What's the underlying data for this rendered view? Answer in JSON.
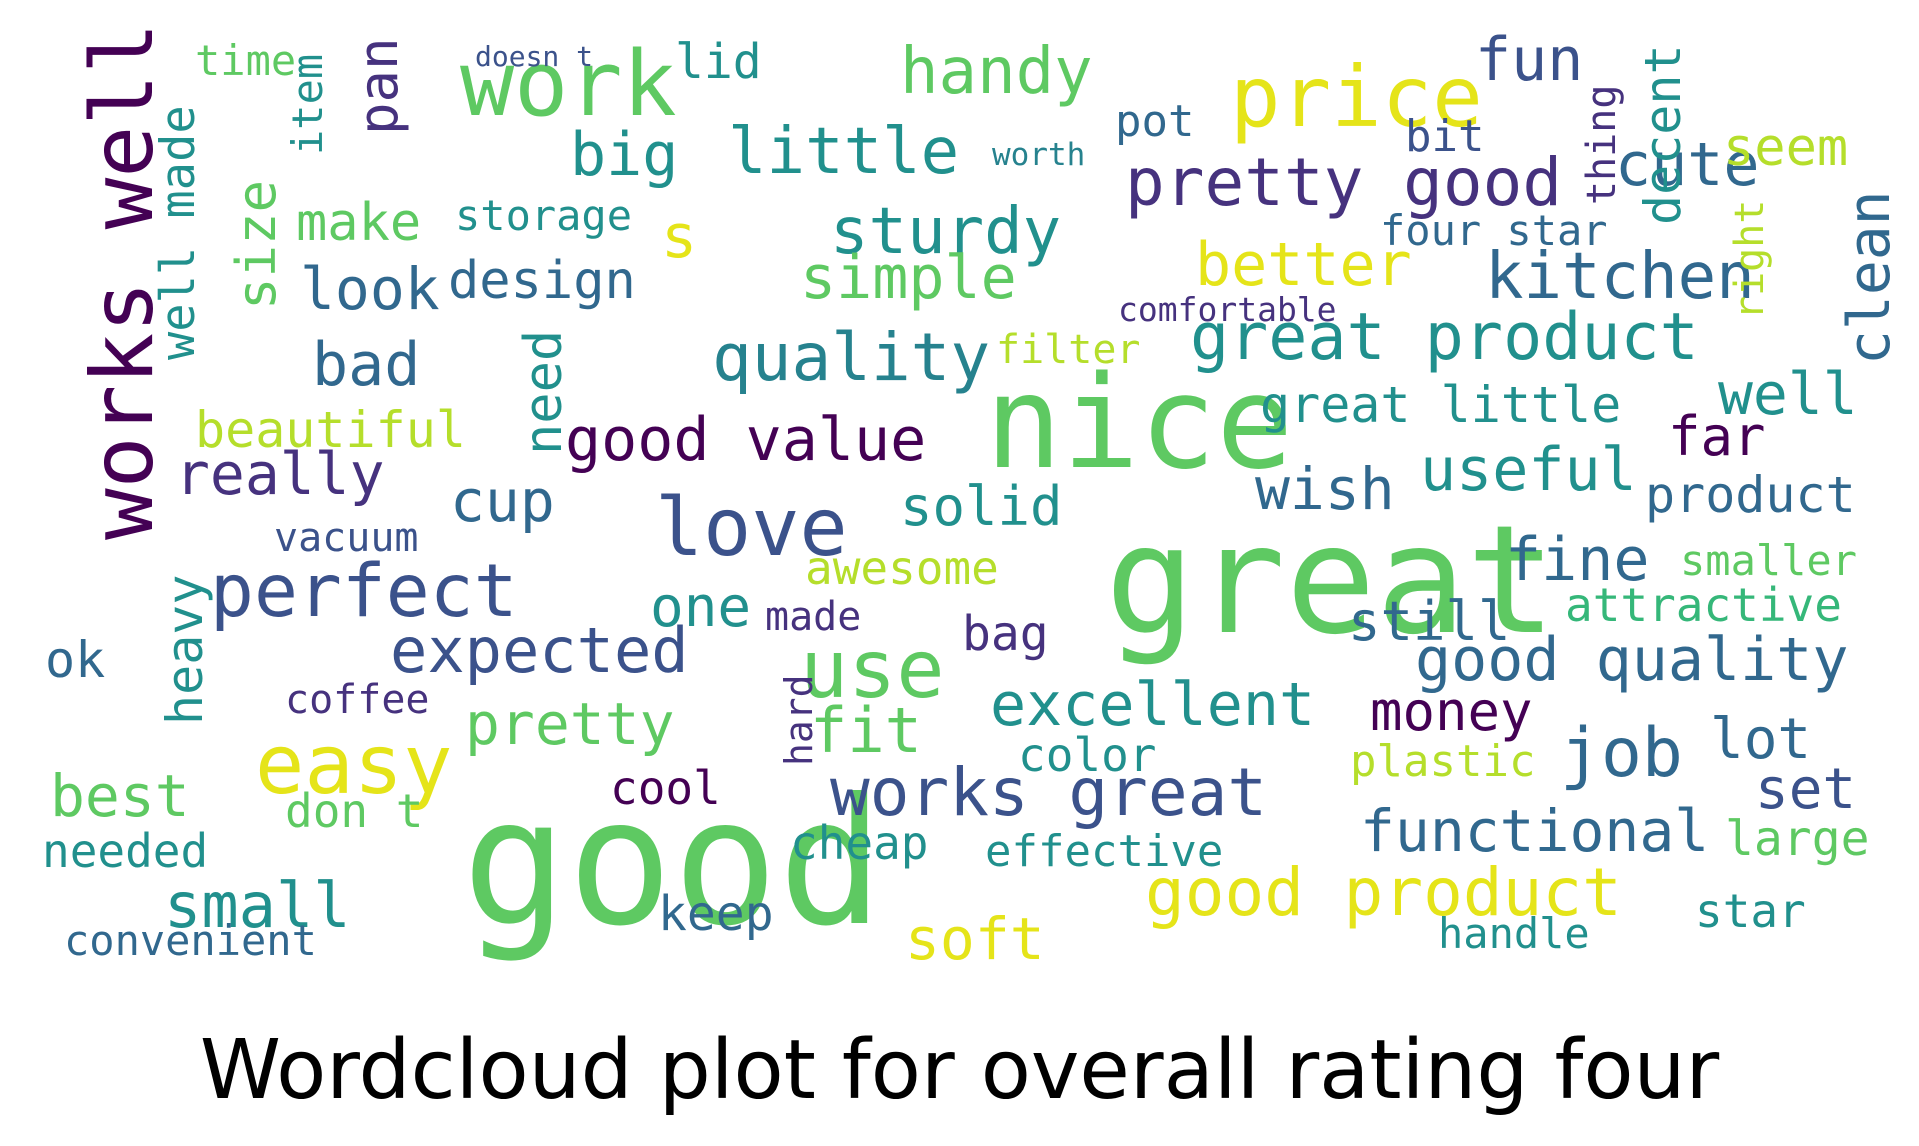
{
  "caption": "Wordcloud plot for overall rating four",
  "palette": {
    "d": "#440154",
    "p": "#3b528b",
    "b": "#31688e",
    "t": "#21908d",
    "g": "#35b779",
    "l": "#5ec962",
    "y": "#b5de2b",
    "Y": "#e5e419",
    "D": "#46327e",
    "T": "#26828e"
  },
  "words": [
    [
      "good",
      "l",
      0
    ],
    [
      "great",
      "l",
      0
    ],
    [
      "nice",
      "l",
      0
    ],
    [
      "works well",
      "d",
      1
    ],
    [
      "work",
      "l",
      0
    ],
    [
      "price",
      "Y",
      0
    ],
    [
      "love",
      "p",
      0
    ],
    [
      "easy",
      "Y",
      0
    ],
    [
      "use",
      "l",
      0
    ],
    [
      "perfect",
      "p",
      0
    ],
    [
      "little",
      "t",
      0
    ],
    [
      "pretty good",
      "D",
      0
    ],
    [
      "great product",
      "t",
      0
    ],
    [
      "good value",
      "d",
      0
    ],
    [
      "works great",
      "p",
      0
    ],
    [
      "good product",
      "Y",
      0
    ],
    [
      "expected",
      "p",
      0
    ],
    [
      "quality",
      "T",
      0
    ],
    [
      "sturdy",
      "t",
      0
    ],
    [
      "kitchen",
      "b",
      0
    ],
    [
      "simple",
      "l",
      0
    ],
    [
      "handy",
      "l",
      0
    ],
    [
      "fun",
      "p",
      0
    ],
    [
      "cute",
      "b",
      0
    ],
    [
      "clean",
      "b",
      1
    ],
    [
      "decent",
      "t",
      1
    ],
    [
      "big",
      "t",
      0
    ],
    [
      "look",
      "b",
      0
    ],
    [
      "make",
      "l",
      0
    ],
    [
      "size",
      "l",
      1
    ],
    [
      "well made",
      "t",
      1
    ],
    [
      "really",
      "D",
      0
    ],
    [
      "bad",
      "b",
      0
    ],
    [
      "better",
      "Y",
      0
    ],
    [
      "great little",
      "t",
      0
    ],
    [
      "well",
      "t",
      0
    ],
    [
      "far",
      "d",
      0
    ],
    [
      "useful",
      "t",
      0
    ],
    [
      "wish",
      "b",
      0
    ],
    [
      "product",
      "b",
      0
    ],
    [
      "solid",
      "t",
      0
    ],
    [
      "fine",
      "b",
      0
    ],
    [
      "good quality",
      "b",
      0
    ],
    [
      "excellent",
      "t",
      0
    ],
    [
      "pretty",
      "l",
      0
    ],
    [
      "money",
      "d",
      0
    ],
    [
      "job",
      "b",
      0
    ],
    [
      "lot",
      "b",
      0
    ],
    [
      "set",
      "p",
      0
    ],
    [
      "functional",
      "b",
      0
    ],
    [
      "large",
      "l",
      0
    ],
    [
      "soft",
      "Y",
      0
    ],
    [
      "small",
      "t",
      0
    ],
    [
      "best",
      "l",
      0
    ],
    [
      "fit",
      "l",
      0
    ],
    [
      "one",
      "t",
      0
    ],
    [
      "awesome",
      "y",
      0
    ],
    [
      "heavy",
      "t",
      1
    ],
    [
      "ok",
      "b",
      0
    ],
    [
      "cup",
      "b",
      0
    ],
    [
      "need",
      "t",
      1
    ],
    [
      "beautiful",
      "y",
      0
    ],
    [
      "design",
      "b",
      0
    ],
    [
      "storage",
      "t",
      0
    ],
    [
      "pan",
      "D",
      1
    ],
    [
      "time",
      "l",
      0
    ],
    [
      "item",
      "t",
      1
    ],
    [
      "lid",
      "t",
      0
    ],
    [
      "s",
      "Y",
      0
    ],
    [
      "bit",
      "p",
      0
    ],
    [
      "pot",
      "b",
      0
    ],
    [
      "thing",
      "D",
      1
    ],
    [
      "seem",
      "y",
      0
    ],
    [
      "four star",
      "b",
      0
    ],
    [
      "right",
      "y",
      1
    ],
    [
      "attractive",
      "g",
      0
    ],
    [
      "smaller",
      "l",
      0
    ],
    [
      "still",
      "b",
      0
    ],
    [
      "bag",
      "D",
      0
    ],
    [
      "made",
      "D",
      0
    ],
    [
      "color",
      "t",
      0
    ],
    [
      "plastic",
      "y",
      0
    ],
    [
      "star",
      "t",
      0
    ],
    [
      "handle",
      "t",
      0
    ],
    [
      "keep",
      "b",
      0
    ],
    [
      "cheap",
      "t",
      0
    ],
    [
      "effective",
      "t",
      0
    ],
    [
      "cool",
      "d",
      0
    ],
    [
      "hard",
      "D",
      1
    ],
    [
      "don t",
      "l",
      0
    ],
    [
      "needed",
      "t",
      0
    ],
    [
      "convenient",
      "b",
      0
    ],
    [
      "coffee",
      "D",
      0
    ],
    [
      "vacuum",
      "p",
      0
    ],
    [
      "filter",
      "y",
      0
    ],
    [
      "comfortable",
      "D",
      0
    ],
    [
      "worth",
      "T",
      0
    ],
    [
      "doesn t",
      "p",
      0
    ]
  ]
}
